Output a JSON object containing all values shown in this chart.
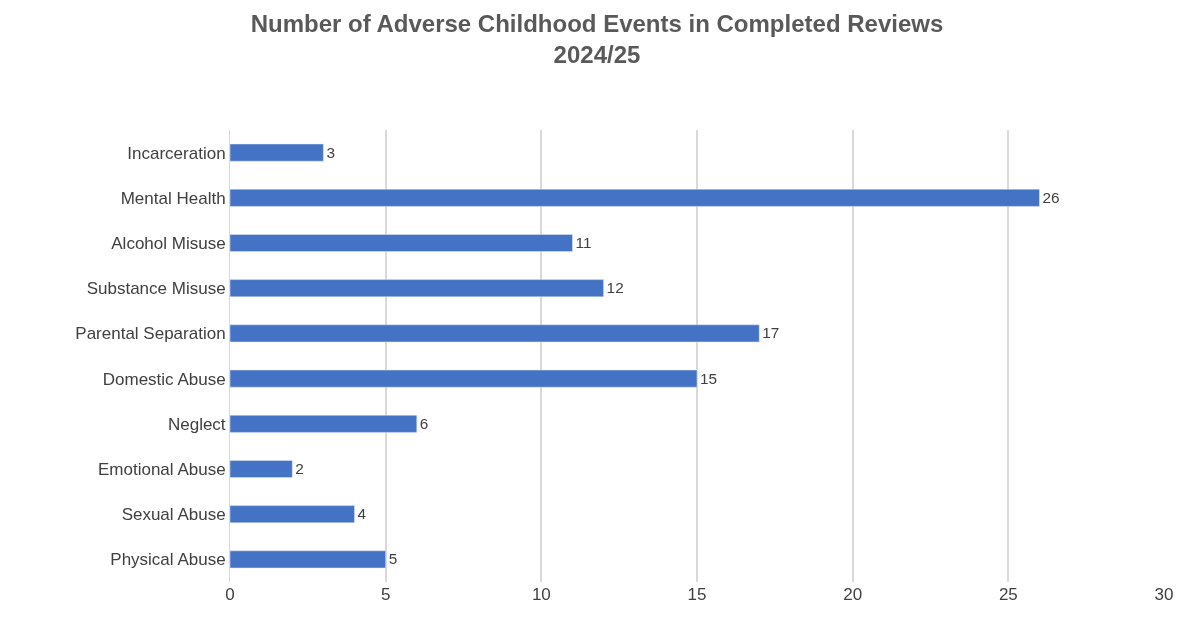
{
  "chart_data": {
    "type": "bar",
    "orientation": "horizontal",
    "title": "Number of Adverse Childhood Events in Completed Reviews\n2024/25",
    "categories": [
      "Incarceration",
      "Mental Health",
      "Alcohol Misuse",
      "Substance Misuse",
      "Parental Separation",
      "Domestic Abuse",
      "Neglect",
      "Emotional Abuse",
      "Sexual Abuse",
      "Physical Abuse"
    ],
    "values": [
      3,
      26,
      11,
      12,
      17,
      15,
      6,
      2,
      4,
      5
    ],
    "color": "#4472c4",
    "xlim": [
      0,
      30
    ],
    "xticks": [
      0,
      5,
      10,
      15,
      20,
      25,
      30
    ],
    "grid": "x",
    "data_labels": true
  }
}
